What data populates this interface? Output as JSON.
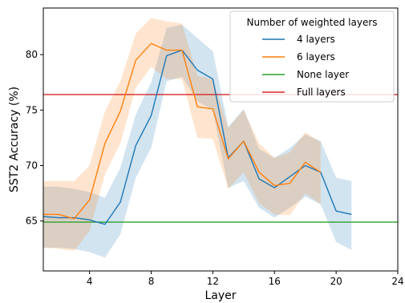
{
  "chart_data": {
    "type": "line",
    "xlabel": "Layer",
    "ylabel": "SST2 Accuracy (%)",
    "xlim": [
      1,
      24
    ],
    "ylim": [
      60.5,
      84.2
    ],
    "x_ticks": [
      4,
      8,
      12,
      16,
      20,
      24
    ],
    "y_ticks": [
      65,
      70,
      75,
      80
    ],
    "grid": false,
    "legend": {
      "title": "Number of weighted layers",
      "placement": "top-right"
    },
    "series": [
      {
        "name": "4 layers",
        "color": "#1f77b4",
        "x": [
          1,
          2,
          3,
          4,
          5,
          6,
          7,
          8,
          9,
          10,
          11,
          12,
          13,
          14,
          15,
          16,
          17,
          18,
          19,
          20,
          21
        ],
        "y": [
          65.4,
          65.3,
          65.3,
          65.1,
          64.7,
          66.7,
          71.8,
          74.5,
          79.9,
          80.4,
          78.6,
          77.8,
          70.7,
          72.2,
          68.8,
          68.0,
          69.0,
          70.0,
          69.4,
          65.9,
          65.6
        ],
        "band_low": [
          62.6,
          62.6,
          62.5,
          62.2,
          61.7,
          63.8,
          68.9,
          71.6,
          77.6,
          78.0,
          75.8,
          75.0,
          68.0,
          68.6,
          66.2,
          65.3,
          66.2,
          67.2,
          66.5,
          63.1,
          62.4
        ],
        "band_high": [
          68.1,
          68.1,
          67.9,
          67.6,
          67.1,
          69.8,
          74.6,
          77.5,
          82.4,
          82.7,
          81.5,
          80.3,
          73.5,
          75.1,
          71.5,
          70.7,
          71.6,
          72.8,
          72.2,
          68.9,
          68.6
        ]
      },
      {
        "name": "6 layers",
        "color": "#ff7f0e",
        "x": [
          1,
          2,
          3,
          4,
          5,
          6,
          7,
          8,
          9,
          10,
          11,
          12,
          13,
          14,
          15,
          16,
          17,
          18,
          19
        ],
        "y": [
          65.6,
          65.6,
          65.2,
          66.9,
          72.0,
          74.9,
          79.5,
          81.0,
          80.4,
          80.4,
          75.3,
          75.1,
          70.6,
          72.2,
          69.4,
          68.2,
          68.4,
          70.3,
          69.4
        ],
        "band_low": [
          62.6,
          62.5,
          62.3,
          64.1,
          69.2,
          72.0,
          77.0,
          78.9,
          77.8,
          77.8,
          72.5,
          72.4,
          67.9,
          69.4,
          66.6,
          65.6,
          65.5,
          67.5,
          66.5
        ],
        "band_high": [
          68.6,
          68.6,
          68.6,
          70.0,
          74.9,
          77.6,
          81.9,
          83.3,
          83.0,
          82.8,
          78.1,
          77.8,
          73.4,
          75.0,
          72.0,
          70.7,
          71.2,
          73.0,
          72.1
        ]
      },
      {
        "name": "None layer",
        "color": "#2ca02c",
        "hline": 64.9
      },
      {
        "name": "Full layers",
        "color": "#d62728",
        "hline": 76.4
      }
    ]
  }
}
